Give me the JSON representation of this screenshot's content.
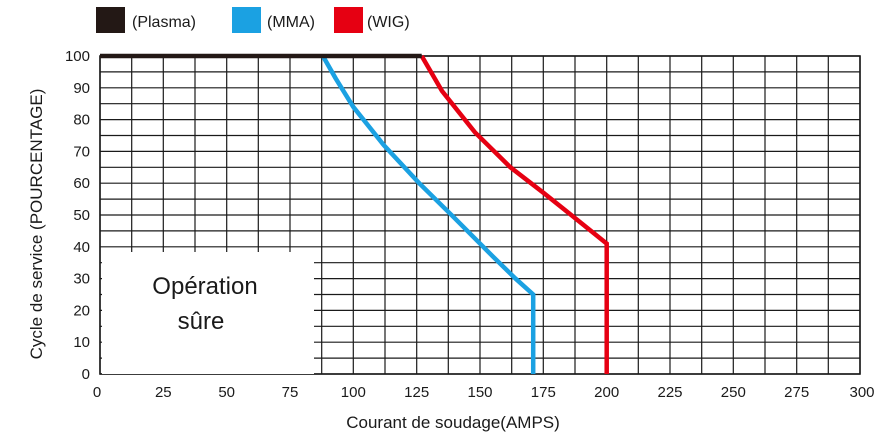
{
  "chart_data": {
    "type": "line",
    "xlabel": "Courant de soudage(AMPS)",
    "ylabel": "Cycle de service (POURCENTAGE)",
    "xlim": [
      0,
      300
    ],
    "ylim": [
      0,
      100
    ],
    "x_ticks": [
      "0",
      "25",
      "50",
      "75",
      "100",
      "125",
      "150",
      "175",
      "200",
      "225",
      "250",
      "275",
      "300"
    ],
    "y_ticks": [
      "0",
      "10",
      "20",
      "30",
      "40",
      "50",
      "60",
      "70",
      "80",
      "90",
      "100"
    ],
    "grid": true,
    "legend_position": "top-left",
    "annotation": {
      "line1": "Opération",
      "line2": "sûre"
    },
    "series": [
      {
        "name": "(Plasma)",
        "color": "#231815",
        "points": [
          [
            0,
            100
          ],
          [
            127,
            100
          ]
        ]
      },
      {
        "name": "(MMA)",
        "color": "#1ba1e2",
        "points": [
          [
            88,
            100
          ],
          [
            93,
            93
          ],
          [
            100,
            84
          ],
          [
            112,
            72
          ],
          [
            126,
            60
          ],
          [
            140,
            49
          ],
          [
            155,
            37
          ],
          [
            164,
            30
          ],
          [
            171,
            25
          ],
          [
            171,
            0
          ]
        ]
      },
      {
        "name": "(WIG)",
        "color": "#e60012",
        "points": [
          [
            127,
            100
          ],
          [
            135,
            89
          ],
          [
            148,
            76
          ],
          [
            162,
            65
          ],
          [
            175,
            57
          ],
          [
            186,
            50
          ],
          [
            200,
            41
          ],
          [
            200,
            0
          ]
        ]
      }
    ]
  }
}
